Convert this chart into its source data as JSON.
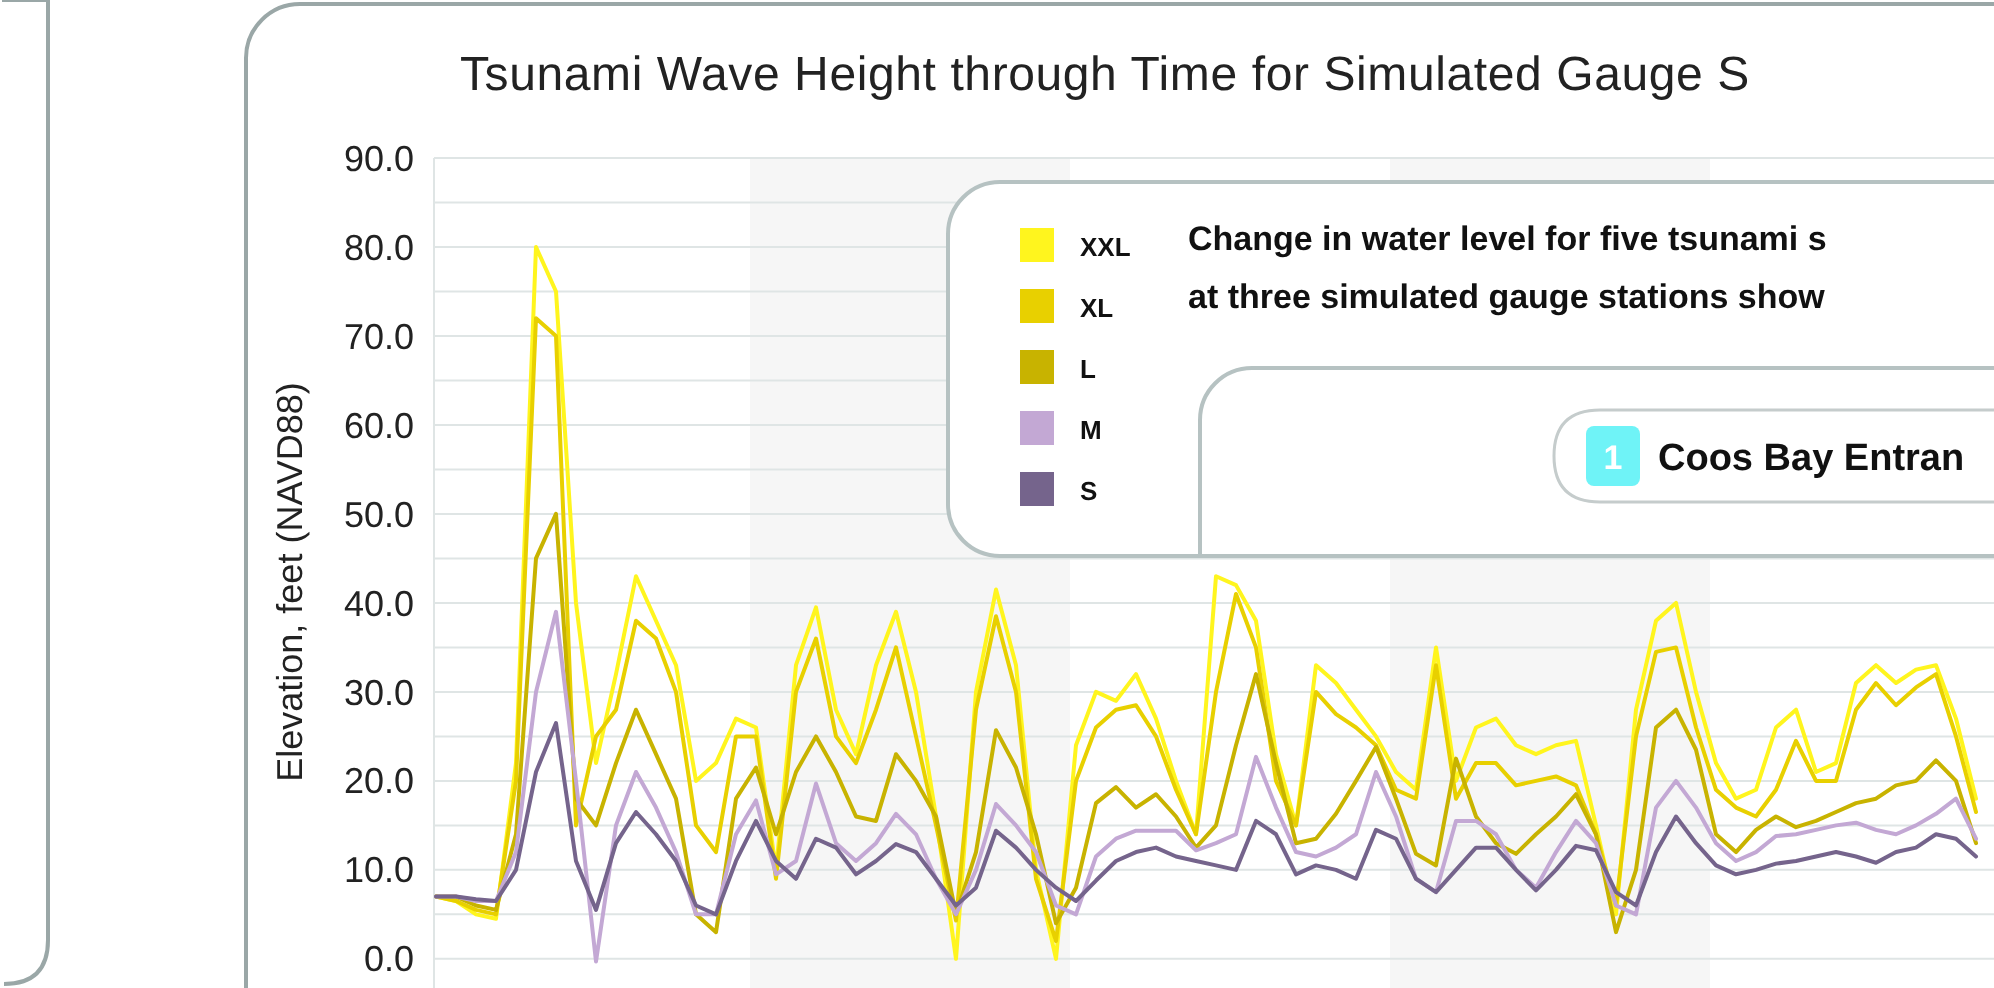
{
  "chart_data": {
    "type": "line",
    "title": "Tsunami Wave Height through Time for Simulated Gauge S",
    "ylabel": "Elevation, feet (NAVD88)",
    "categories": [
      null,
      null,
      null,
      null,
      null,
      null,
      null,
      null,
      null,
      null,
      null,
      null,
      null,
      null,
      null,
      null,
      null,
      null,
      null,
      null,
      null,
      null,
      null,
      null,
      null,
      null,
      null,
      null,
      null,
      null,
      null,
      null,
      null,
      null,
      null,
      null,
      null,
      null,
      null,
      null,
      null,
      null,
      null,
      null,
      null,
      null,
      null,
      null,
      null,
      null,
      null,
      null,
      null,
      null,
      null,
      null,
      null,
      null,
      null,
      null,
      null,
      null,
      null,
      null,
      null,
      null,
      null,
      null,
      null,
      null,
      null,
      null,
      null,
      null,
      null,
      null,
      null,
      null
    ],
    "series": [
      {
        "name": "XXL",
        "color": "#fff51e",
        "values": [
          7,
          6.5,
          5,
          4.5,
          22,
          80,
          75,
          40,
          22,
          32,
          43,
          38,
          33,
          20,
          22,
          27,
          26,
          10,
          33,
          39.5,
          28,
          23,
          33,
          39,
          30,
          16,
          0,
          30,
          41.5,
          33,
          10,
          0,
          24,
          30,
          29,
          32,
          27,
          20,
          14,
          43,
          42,
          38,
          23,
          15,
          33,
          31,
          28,
          25,
          21,
          19,
          35,
          20,
          26,
          27,
          24,
          23,
          24,
          24.5,
          15,
          5,
          28,
          38,
          40,
          30,
          22,
          18,
          19,
          26,
          28,
          21,
          22,
          31,
          33,
          31,
          32.5,
          33,
          27,
          18
        ]
      },
      {
        "name": "XL",
        "color": "#e8d000",
        "values": [
          7,
          6.5,
          5.5,
          5,
          20,
          72,
          70,
          15,
          25,
          28,
          38,
          36,
          30,
          15,
          12,
          25,
          25,
          9,
          30,
          36,
          25,
          22,
          28,
          35,
          25,
          15,
          4.3,
          28,
          38.5,
          30,
          9,
          2,
          20,
          26,
          28,
          28.5,
          25,
          19,
          14,
          30,
          41,
          35,
          20,
          15,
          30,
          27.5,
          26,
          24,
          19,
          18,
          33,
          18,
          22,
          22,
          19.5,
          20,
          20.5,
          19.5,
          14,
          6,
          25,
          34.5,
          35,
          26,
          19,
          17,
          16,
          19,
          24.5,
          20,
          20,
          28,
          31,
          28.5,
          30.5,
          32,
          25,
          16.5
        ]
      },
      {
        "name": "L",
        "color": "#c8b300",
        "values": [
          7,
          7,
          6,
          5.5,
          14,
          45,
          50,
          18,
          15,
          22,
          28,
          23,
          18,
          5,
          3,
          18,
          21.5,
          14,
          21,
          25,
          21,
          16,
          15.5,
          23,
          20,
          16,
          5,
          12,
          25.7,
          21.5,
          14,
          4,
          8,
          17.5,
          19.3,
          17,
          18.5,
          16,
          12.5,
          15,
          24,
          32,
          22,
          13,
          13.5,
          16.3,
          20,
          23.8,
          18,
          11.8,
          10.5,
          22.5,
          16,
          13,
          11.8,
          14,
          16,
          18.5,
          14,
          3,
          10,
          26,
          28,
          23.5,
          14,
          12,
          14.5,
          16,
          14.8,
          15.5,
          16.5,
          17.5,
          18,
          19.5,
          20,
          22.3,
          20,
          13
        ]
      },
      {
        "name": "M",
        "color": "#c3a8d4",
        "values": [
          7,
          7,
          6.5,
          6.5,
          12,
          30,
          39,
          20,
          -0.3,
          15,
          21,
          17,
          12,
          5,
          5,
          14,
          17.8,
          9.5,
          11,
          19.7,
          13,
          11,
          13,
          16.3,
          14,
          9,
          5,
          10,
          17.4,
          15,
          12,
          6,
          5,
          11.5,
          13.5,
          14.4,
          14.4,
          14.4,
          12.2,
          13,
          14,
          22.7,
          17,
          12,
          11.5,
          12.5,
          14,
          21,
          16,
          9,
          7.5,
          15.5,
          15.5,
          14,
          10,
          8,
          12,
          15.5,
          13,
          6,
          5,
          17,
          20,
          17,
          13,
          11,
          12,
          13.8,
          14,
          14.5,
          15,
          15.3,
          14.5,
          14,
          15,
          16.3,
          18,
          13.5
        ]
      },
      {
        "name": "S",
        "color": "#75648c",
        "values": [
          7,
          7,
          6.7,
          6.5,
          10,
          21,
          26.5,
          11,
          5.5,
          13,
          16.5,
          14,
          11,
          6,
          5,
          11,
          15.5,
          11,
          9,
          13.5,
          12.5,
          9.5,
          11,
          12.9,
          12,
          9,
          6,
          8,
          14.4,
          12.5,
          10,
          8,
          6.5,
          8.8,
          11,
          12,
          12.5,
          11.5,
          11,
          10.5,
          10,
          15.5,
          14,
          9.5,
          10.5,
          10,
          9,
          14.5,
          13.5,
          9,
          7.5,
          10,
          12.5,
          12.5,
          10,
          7.7,
          10,
          12.7,
          12.2,
          7.5,
          6,
          12,
          16,
          13,
          10.5,
          9.5,
          10,
          10.7,
          11,
          11.5,
          12,
          11.5,
          10.8,
          12,
          12.5,
          14,
          13.5,
          11.5
        ]
      }
    ],
    "ylim": [
      -3.5,
      90
    ],
    "yticks": [
      {
        "value": 0,
        "label": "0.0"
      },
      {
        "value": 5,
        "label": null
      },
      {
        "value": 10,
        "label": "10.0"
      },
      {
        "value": 15,
        "label": null
      },
      {
        "value": 20,
        "label": "20.0"
      },
      {
        "value": 25,
        "label": null
      },
      {
        "value": 30,
        "label": "30.0"
      },
      {
        "value": 35,
        "label": null
      },
      {
        "value": 40,
        "label": "40.0"
      },
      {
        "value": 45,
        "label": null
      },
      {
        "value": 50,
        "label": "50.0"
      },
      {
        "value": 55,
        "label": null
      },
      {
        "value": 60,
        "label": "60.0"
      },
      {
        "value": 65,
        "label": null
      },
      {
        "value": 70,
        "label": "70.0"
      },
      {
        "value": 75,
        "label": null
      },
      {
        "value": 80,
        "label": "80.0"
      },
      {
        "value": 85,
        "label": null
      },
      {
        "value": 90,
        "label": "90.0"
      }
    ],
    "grid": "y",
    "legend": "top",
    "tick_labels": "y",
    "annotations": [
      "Change in water level for five tsunami s",
      "at three simulated gauge stations show",
      "1",
      "Coos Bay Entran"
    ]
  }
}
